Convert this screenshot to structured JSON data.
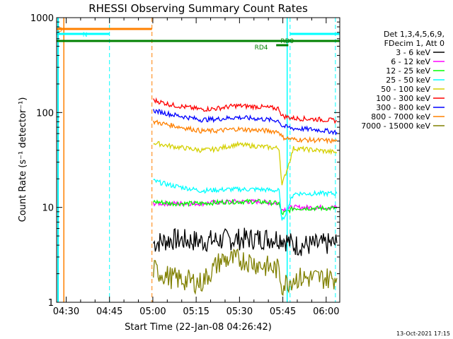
{
  "chart_data": {
    "type": "line",
    "title": "RHESSI Observing Summary Count Rates",
    "xlabel": "Start Time (22-Jan-08 04:26:42)",
    "ylabel": "Count Rate (s⁻¹ detector⁻¹)",
    "yscale": "log",
    "ylim": [
      1,
      1000
    ],
    "xlim_minutes": [
      0,
      98
    ],
    "x_tick_labels": [
      "04:30",
      "04:45",
      "05:00",
      "05:15",
      "05:30",
      "05:45",
      "06:00"
    ],
    "x_tick_minutes": [
      3.3,
      18.3,
      33.3,
      48.3,
      63.3,
      78.3,
      93.3
    ],
    "y_tick_labels": [
      "1",
      "10",
      "100",
      "1000"
    ],
    "y_tick_values": [
      1,
      10,
      100,
      1000
    ],
    "legend": {
      "header": [
        "Det 1,3,4,5,6,9,",
        "FDecim 1, Att 0"
      ],
      "placement": "right"
    },
    "series": [
      {
        "name": "3 - 6 keV",
        "color": "#000000",
        "points": [
          [
            33.5,
            4.2
          ],
          [
            40,
            4.6
          ],
          [
            50,
            4.4
          ],
          [
            60,
            4.6
          ],
          [
            70,
            4.7
          ],
          [
            78,
            4.8
          ],
          [
            82,
            4.0
          ],
          [
            90,
            4.0
          ],
          [
            97,
            4.2
          ]
        ]
      },
      {
        "name": "6 - 12 keV",
        "color": "#ff00ff",
        "points": [
          [
            33.5,
            11
          ],
          [
            40,
            11
          ],
          [
            50,
            11
          ],
          [
            60,
            11.5
          ],
          [
            70,
            11.5
          ],
          [
            77,
            11
          ],
          [
            78,
            9.5
          ],
          [
            82,
            10
          ],
          [
            90,
            10
          ],
          [
            97,
            10
          ]
        ]
      },
      {
        "name": "12 - 25 keV",
        "color": "#00ff00",
        "points": [
          [
            33.5,
            11.5
          ],
          [
            40,
            11
          ],
          [
            50,
            11
          ],
          [
            60,
            11.5
          ],
          [
            70,
            11.5
          ],
          [
            77,
            11
          ],
          [
            78,
            8.5
          ],
          [
            82,
            9.8
          ],
          [
            90,
            9.8
          ],
          [
            97,
            9.8
          ]
        ]
      },
      {
        "name": "25 - 50 keV",
        "color": "#00ffff",
        "points": [
          [
            33.5,
            19
          ],
          [
            40,
            17
          ],
          [
            50,
            15
          ],
          [
            60,
            15.5
          ],
          [
            70,
            15.5
          ],
          [
            77,
            15
          ],
          [
            78,
            7
          ],
          [
            82,
            14
          ],
          [
            90,
            14
          ],
          [
            97,
            14
          ]
        ]
      },
      {
        "name": "50 - 100 keV",
        "color": "#d4d000",
        "points": [
          [
            33.5,
            48
          ],
          [
            40,
            44
          ],
          [
            50,
            40
          ],
          [
            55,
            41
          ],
          [
            62,
            46
          ],
          [
            70,
            44
          ],
          [
            77,
            42
          ],
          [
            78,
            17
          ],
          [
            82,
            42
          ],
          [
            90,
            40
          ],
          [
            97,
            38
          ]
        ]
      },
      {
        "name": "100 - 300 keV",
        "color": "#ff0000",
        "points": [
          [
            33.5,
            135
          ],
          [
            40,
            120
          ],
          [
            50,
            108
          ],
          [
            55,
            110
          ],
          [
            62,
            118
          ],
          [
            70,
            115
          ],
          [
            77,
            110
          ],
          [
            78,
            92
          ],
          [
            82,
            87
          ],
          [
            90,
            85
          ],
          [
            97,
            82
          ]
        ]
      },
      {
        "name": "300 - 800 keV",
        "color": "#0000ff",
        "points": [
          [
            33.5,
            105
          ],
          [
            40,
            95
          ],
          [
            50,
            84
          ],
          [
            55,
            85
          ],
          [
            62,
            89
          ],
          [
            70,
            86
          ],
          [
            77,
            82
          ],
          [
            78,
            72
          ],
          [
            82,
            68
          ],
          [
            90,
            66
          ],
          [
            97,
            62
          ]
        ]
      },
      {
        "name": "800 - 7000 keV",
        "color": "#ff8000",
        "points": [
          [
            33.5,
            80
          ],
          [
            40,
            73
          ],
          [
            50,
            64
          ],
          [
            55,
            64
          ],
          [
            62,
            67
          ],
          [
            70,
            65
          ],
          [
            77,
            63
          ],
          [
            78,
            55
          ],
          [
            82,
            52
          ],
          [
            90,
            51
          ],
          [
            97,
            50
          ]
        ]
      },
      {
        "name": "7000 - 15000 keV",
        "color": "#808000",
        "points": [
          [
            33.5,
            2.2
          ],
          [
            40,
            1.8
          ],
          [
            50,
            1.6
          ],
          [
            57,
            2.8
          ],
          [
            65,
            2.8
          ],
          [
            70,
            2.5
          ],
          [
            77,
            2.2
          ],
          [
            78,
            1.5
          ],
          [
            82,
            1.8
          ],
          [
            90,
            1.8
          ],
          [
            97,
            1.8
          ]
        ]
      }
    ],
    "annotations": [
      {
        "text": "S",
        "color": "#ff8000"
      },
      {
        "text": "N",
        "color": "#00ffff"
      },
      {
        "text": "RD0",
        "color": "#008000"
      },
      {
        "text": "RD4",
        "color": "#008000"
      }
    ],
    "footer": "13-Oct-2021 17:15"
  }
}
